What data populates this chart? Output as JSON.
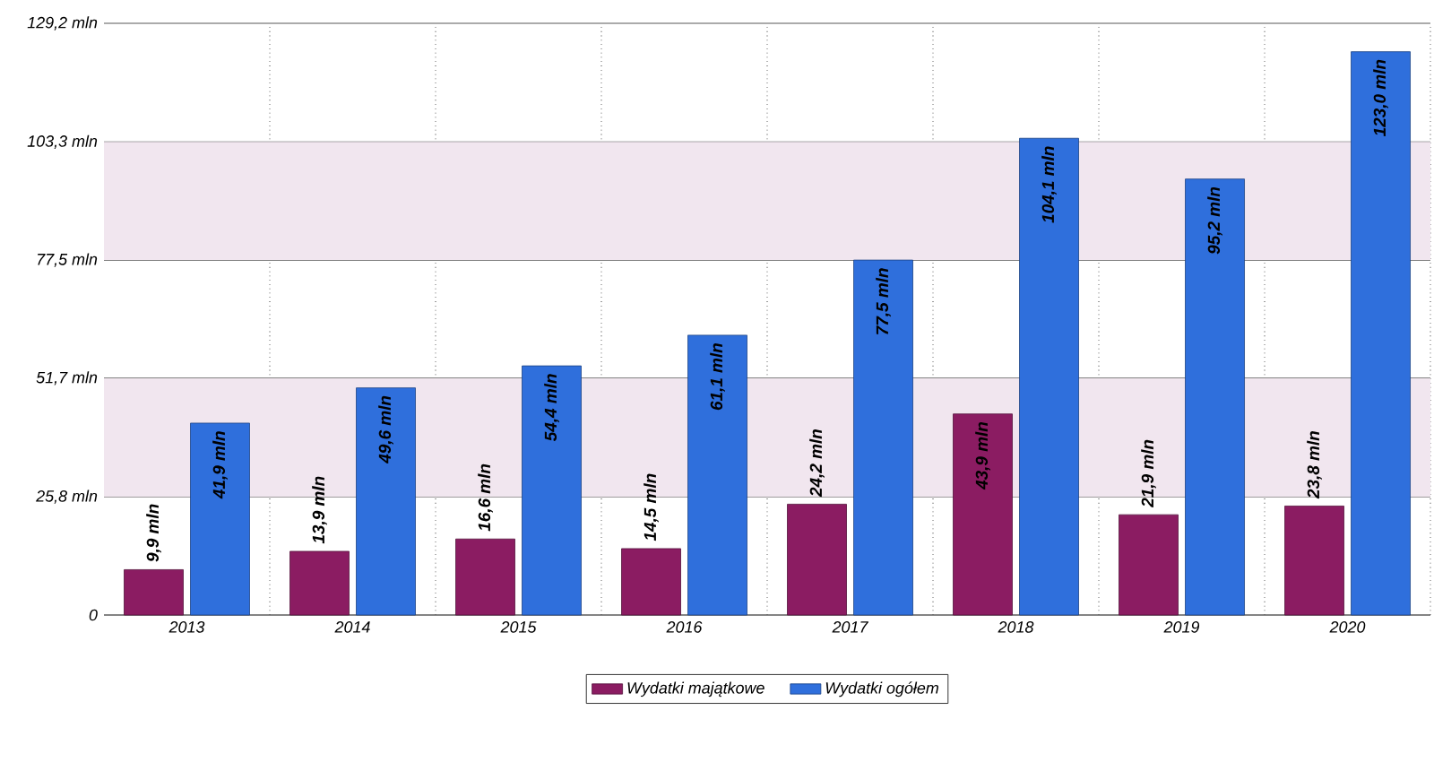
{
  "chart_data": {
    "type": "bar",
    "categories": [
      "2013",
      "2014",
      "2015",
      "2016",
      "2017",
      "2018",
      "2019",
      "2020"
    ],
    "series": [
      {
        "name": "Wydatki majątkowe",
        "color": "#8b1c62",
        "values": [
          9.9,
          13.9,
          16.6,
          14.5,
          24.2,
          43.9,
          21.9,
          23.8
        ],
        "value_labels": [
          "9,9 mln",
          "13,9 mln",
          "16,6 mln",
          "14,5 mln",
          "24,2 mln",
          "43,9 mln",
          "21,9 mln",
          "23,8 mln"
        ]
      },
      {
        "name": "Wydatki ogółem",
        "color": "#2f6fdc",
        "values": [
          41.9,
          49.6,
          54.4,
          61.1,
          77.5,
          104.1,
          95.2,
          123.0
        ],
        "value_labels": [
          "41,9 mln",
          "49,6 mln",
          "54,4 mln",
          "61,1 mln",
          "77,5 mln",
          "104,1 mln",
          "95,2 mln",
          "123,0 mln"
        ]
      }
    ],
    "ylim": [
      0,
      129.2
    ],
    "yticks": [
      0,
      {
        "value": 25.8,
        "label": "25,8 mln"
      },
      {
        "value": 51.7,
        "label": "51,7 mln"
      },
      {
        "value": 77.5,
        "label": "77,5 mln"
      },
      {
        "value": 103.3,
        "label": "103,3 mln"
      },
      {
        "value": 129.2,
        "label": "129,2 mln"
      }
    ],
    "bands": [
      {
        "axis": "y",
        "from": 25.8,
        "to": 51.7,
        "color": "#f1e6ef"
      },
      {
        "axis": "y",
        "from": 77.5,
        "to": 103.3,
        "color": "#f1e6ef"
      }
    ],
    "grid": true,
    "legend": "bottom"
  }
}
